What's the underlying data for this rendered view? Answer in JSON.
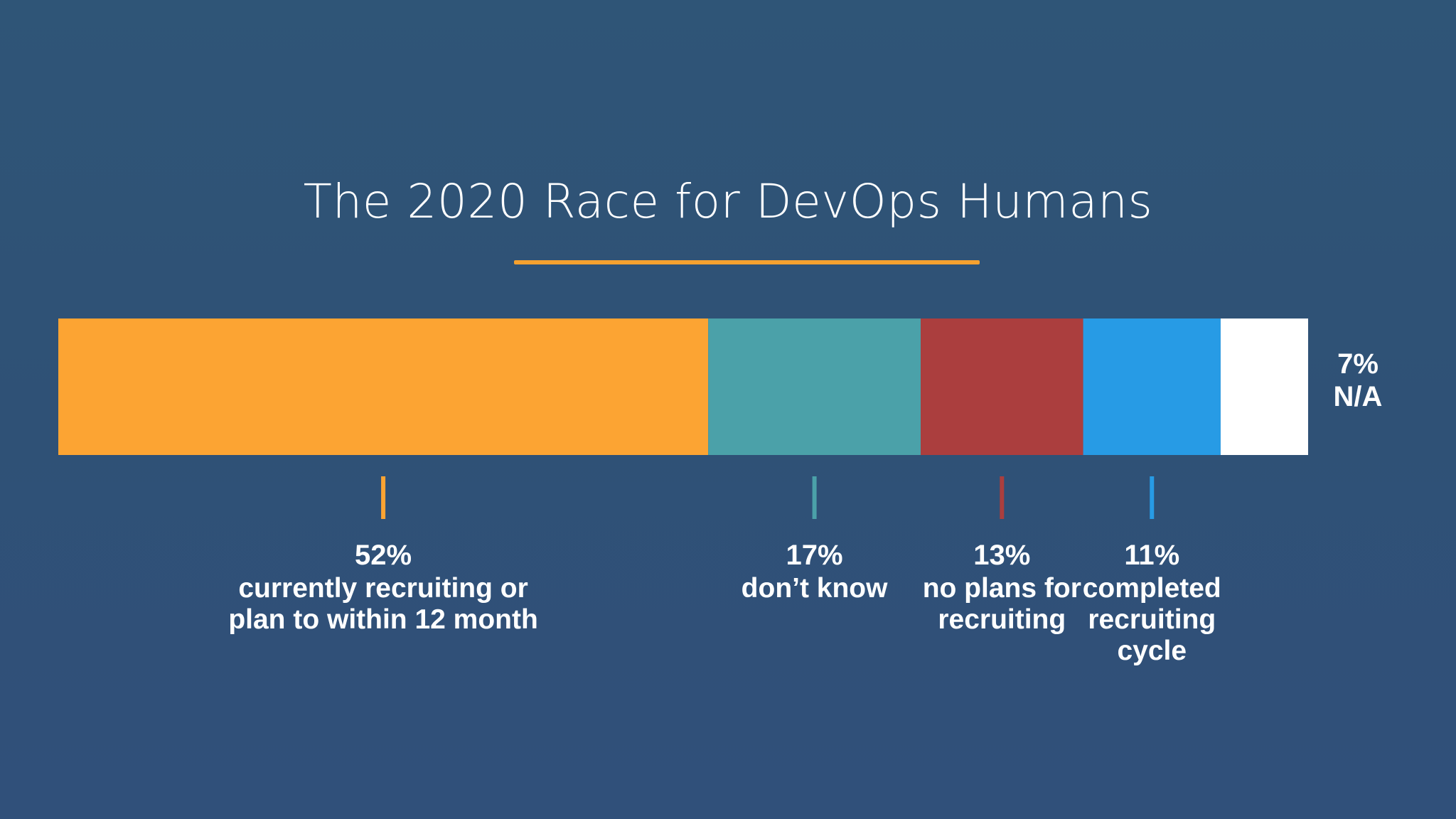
{
  "slide": {
    "title": "The 2020 Race for DevOps Humans"
  },
  "chart_data": {
    "type": "bar",
    "orientation": "horizontal-stacked-100",
    "title": "The 2020 Race for DevOps Humans",
    "categories": [
      "currently recruiting or plan to within 12 month",
      "don’t know",
      "no plans for recruiting",
      "completed recruiting cycle",
      "N/A"
    ],
    "values": [
      52,
      17,
      13,
      11,
      7
    ],
    "unit": "%",
    "xlim": [
      0,
      100
    ],
    "grid": false,
    "legend": "labels-below",
    "segments": [
      {
        "value": 52,
        "value_label": "52%",
        "lines": [
          "currently recruiting or",
          "plan to within 12 month"
        ],
        "color": "#fca433"
      },
      {
        "value": 17,
        "value_label": "17%",
        "lines": [
          "don’t know"
        ],
        "color": "#4ba1a9"
      },
      {
        "value": 13,
        "value_label": "13%",
        "lines": [
          "no plans for",
          "recruiting"
        ],
        "color": "#ab3e3e"
      },
      {
        "value": 11,
        "value_label": "11%",
        "lines": [
          "completed",
          "recruiting",
          "cycle"
        ],
        "color": "#279be5"
      },
      {
        "value": 7,
        "value_label": "7%",
        "lines": [
          "N/A"
        ],
        "color": "#ffffff"
      }
    ]
  },
  "colors": {
    "background": "#2e5274",
    "accent": "#f5a12f",
    "text": "#ffffff"
  }
}
